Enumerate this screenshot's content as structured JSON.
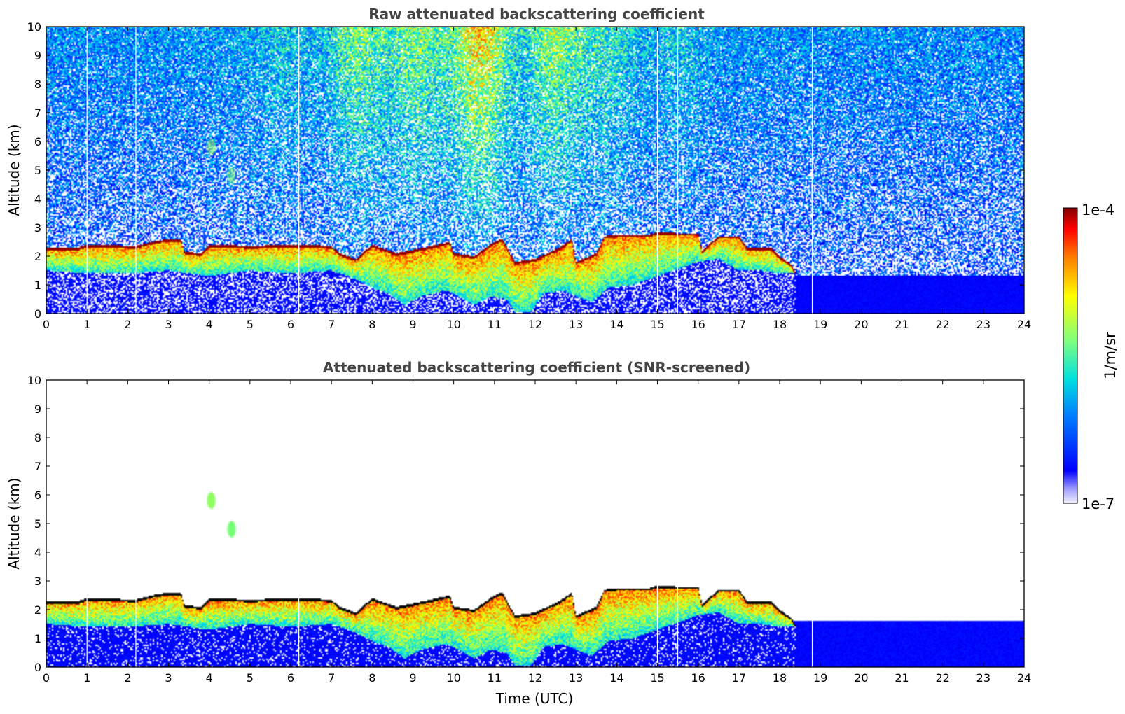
{
  "chart_data": [
    {
      "type": "heatmap",
      "title": "Raw attenuated backscattering coefficient",
      "ylabel": "Altitude (km)",
      "xlabel": "",
      "xlim": [
        0,
        24
      ],
      "ylim": [
        0,
        10
      ],
      "x_ticks": [
        "0",
        "1",
        "2",
        "3",
        "4",
        "5",
        "6",
        "7",
        "8",
        "9",
        "10",
        "11",
        "12",
        "13",
        "14",
        "15",
        "16",
        "17",
        "18",
        "19",
        "20",
        "21",
        "22",
        "23",
        "24"
      ],
      "y_ticks": [
        "0",
        "1",
        "2",
        "3",
        "4",
        "5",
        "6",
        "7",
        "8",
        "9",
        "10"
      ],
      "background": "noisy",
      "vertical_gaps_h": [
        1.0,
        2.2,
        6.2,
        15.0,
        15.5,
        18.8
      ],
      "cloud_top_km": [
        [
          0,
          2.3
        ],
        [
          0.8,
          2.3
        ],
        [
          1.0,
          2.4
        ],
        [
          2.2,
          2.35
        ],
        [
          2.6,
          2.5
        ],
        [
          3.0,
          2.6
        ],
        [
          3.3,
          2.6
        ],
        [
          3.4,
          2.15
        ],
        [
          3.8,
          2.1
        ],
        [
          4.0,
          2.4
        ],
        [
          5.0,
          2.35
        ],
        [
          6.2,
          2.4
        ],
        [
          7.0,
          2.35
        ],
        [
          7.2,
          2.1
        ],
        [
          7.6,
          1.9
        ],
        [
          8.0,
          2.4
        ],
        [
          8.6,
          2.1
        ],
        [
          9.3,
          2.3
        ],
        [
          9.9,
          2.5
        ],
        [
          10.0,
          2.1
        ],
        [
          10.5,
          2.0
        ],
        [
          11.0,
          2.5
        ],
        [
          11.2,
          2.6
        ],
        [
          11.5,
          1.8
        ],
        [
          12.0,
          1.9
        ],
        [
          12.6,
          2.3
        ],
        [
          12.9,
          2.6
        ],
        [
          13.0,
          1.8
        ],
        [
          13.5,
          2.1
        ],
        [
          13.7,
          2.7
        ],
        [
          14.0,
          2.75
        ],
        [
          14.8,
          2.75
        ],
        [
          15.0,
          2.85
        ],
        [
          15.5,
          2.8
        ],
        [
          16.0,
          2.8
        ],
        [
          16.1,
          2.2
        ],
        [
          16.5,
          2.7
        ],
        [
          17.0,
          2.7
        ],
        [
          17.2,
          2.3
        ],
        [
          17.8,
          2.3
        ],
        [
          18.0,
          2.0
        ],
        [
          18.3,
          1.7
        ],
        [
          18.4,
          1.4
        ]
      ],
      "cloud_bottom_km": [
        [
          0,
          1.5
        ],
        [
          1.0,
          1.4
        ],
        [
          2.0,
          1.4
        ],
        [
          3.0,
          1.5
        ],
        [
          4.0,
          1.3
        ],
        [
          5.0,
          1.5
        ],
        [
          6.0,
          1.4
        ],
        [
          7.0,
          1.5
        ],
        [
          7.6,
          1.2
        ],
        [
          8.0,
          0.9
        ],
        [
          8.4,
          0.7
        ],
        [
          8.8,
          0.3
        ],
        [
          9.2,
          0.6
        ],
        [
          9.8,
          0.8
        ],
        [
          10.0,
          0.7
        ],
        [
          10.5,
          0.3
        ],
        [
          10.9,
          0.6
        ],
        [
          11.3,
          0.5
        ],
        [
          11.5,
          0.05
        ],
        [
          11.9,
          0.05
        ],
        [
          12.2,
          0.7
        ],
        [
          12.7,
          0.8
        ],
        [
          13.0,
          0.6
        ],
        [
          13.4,
          0.4
        ],
        [
          13.8,
          0.9
        ],
        [
          14.4,
          1.0
        ],
        [
          15.0,
          1.3
        ],
        [
          16.0,
          1.8
        ],
        [
          16.5,
          1.9
        ],
        [
          17.0,
          1.5
        ],
        [
          17.5,
          1.5
        ],
        [
          18.0,
          1.4
        ],
        [
          18.4,
          1.4
        ]
      ]
    },
    {
      "type": "heatmap",
      "title": "Attenuated backscattering coefficient (SNR-screened)",
      "ylabel": "Altitude (km)",
      "xlabel": "Time (UTC)",
      "xlim": [
        0,
        24
      ],
      "ylim": [
        0,
        10
      ],
      "x_ticks": [
        "0",
        "1",
        "2",
        "3",
        "4",
        "5",
        "6",
        "7",
        "8",
        "9",
        "10",
        "11",
        "12",
        "13",
        "14",
        "15",
        "16",
        "17",
        "18",
        "19",
        "20",
        "21",
        "22",
        "23",
        "24"
      ],
      "y_ticks": [
        "0",
        "1",
        "2",
        "3",
        "4",
        "5",
        "6",
        "7",
        "8",
        "9",
        "10"
      ],
      "background": "screened",
      "aerosol_patches": [
        {
          "x": 4.05,
          "y": 5.8,
          "value": 0.62
        },
        {
          "x": 4.55,
          "y": 4.8,
          "value": 0.6
        }
      ]
    }
  ],
  "colorbar": {
    "min_label": "1e-7",
    "max_label": "1e-4",
    "unit_label": "1/m/sr",
    "colormap": "jet"
  }
}
